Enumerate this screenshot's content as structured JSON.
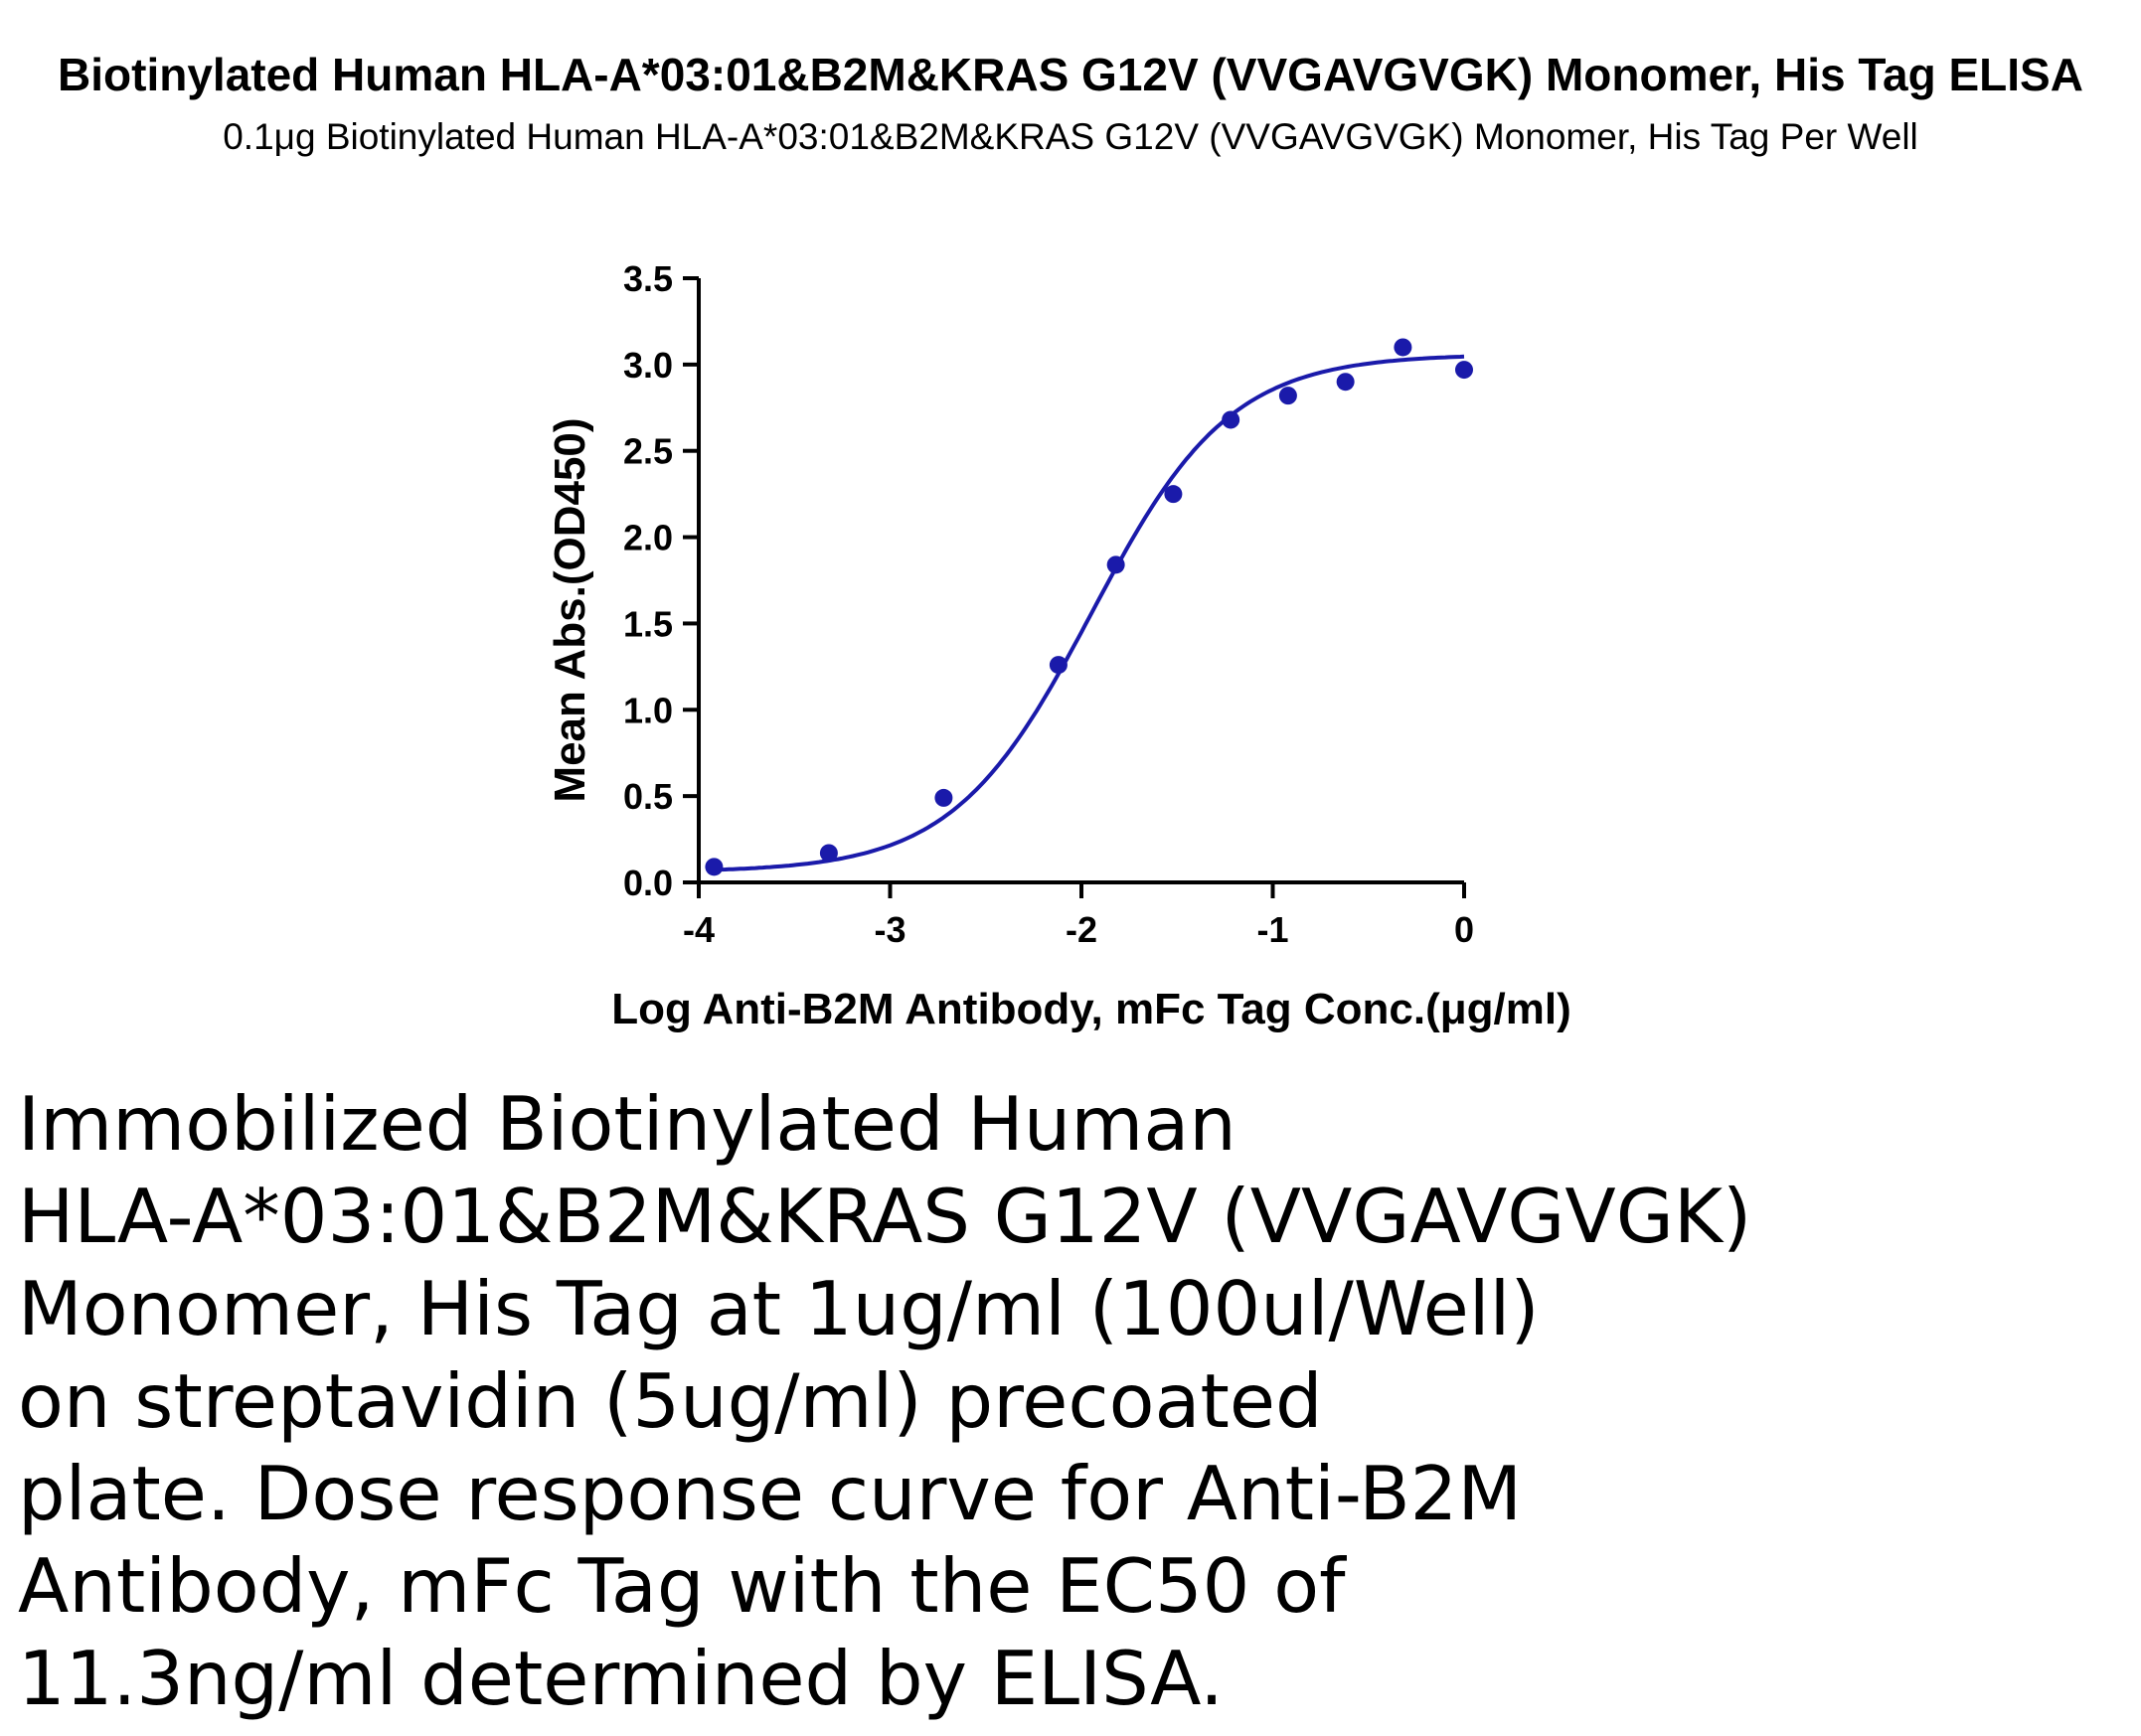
{
  "title": "Biotinylated Human HLA-A*03:01&B2M&KRAS G12V (VVGAVGVGK) Monomer, His Tag ELISA",
  "subtitle": "0.1μg Biotinylated Human HLA-A*03:01&B2M&KRAS G12V (VVGAVGVGK) Monomer, His Tag Per Well",
  "description_lines": [
    "Immobilized Biotinylated Human",
    "HLA-A*03:01&B2M&KRAS G12V (VVGAVGVGK)",
    "Monomer, His Tag at 1ug/ml (100ul/Well)",
    "on streptavidin (5ug/ml) precoated",
    "plate. Dose response curve for Anti-B2M",
    "Antibody, mFc Tag with the EC50 of",
    "11.3ng/ml determined by ELISA."
  ],
  "colors": {
    "series": "#1a1aaa",
    "axis": "#000000"
  },
  "chart_data": {
    "type": "scatter",
    "xlabel": "Log Anti-B2M Antibody, mFc Tag Conc.(μg/ml)",
    "ylabel": "Mean Abs.(OD450)",
    "xlim": [
      -4,
      0
    ],
    "ylim": [
      0,
      3.5
    ],
    "x_ticks": [
      -4,
      -3,
      -2,
      -1,
      0
    ],
    "x_tick_labels": [
      "-4",
      "-3",
      "-2",
      "-1",
      "0"
    ],
    "y_ticks": [
      0,
      0.5,
      1.0,
      1.5,
      2.0,
      2.5,
      3.0,
      3.5
    ],
    "y_tick_labels": [
      "0.0",
      "0.5",
      "1.0",
      "1.5",
      "2.0",
      "2.5",
      "3.0",
      "3.5"
    ],
    "grid": false,
    "legend": "none",
    "points": {
      "x": [
        -3.92,
        -3.32,
        -2.72,
        -2.12,
        -1.82,
        -1.52,
        -1.22,
        -0.92,
        -0.62,
        -0.32,
        0.0
      ],
      "y": [
        0.09,
        0.17,
        0.49,
        1.26,
        1.84,
        2.25,
        2.68,
        2.82,
        2.9,
        3.1,
        2.97
      ]
    },
    "fit": {
      "model": "4PL",
      "bottom": 0.06,
      "top": 3.06,
      "log_ec50": -1.947,
      "hill_slope": 1.2
    }
  }
}
